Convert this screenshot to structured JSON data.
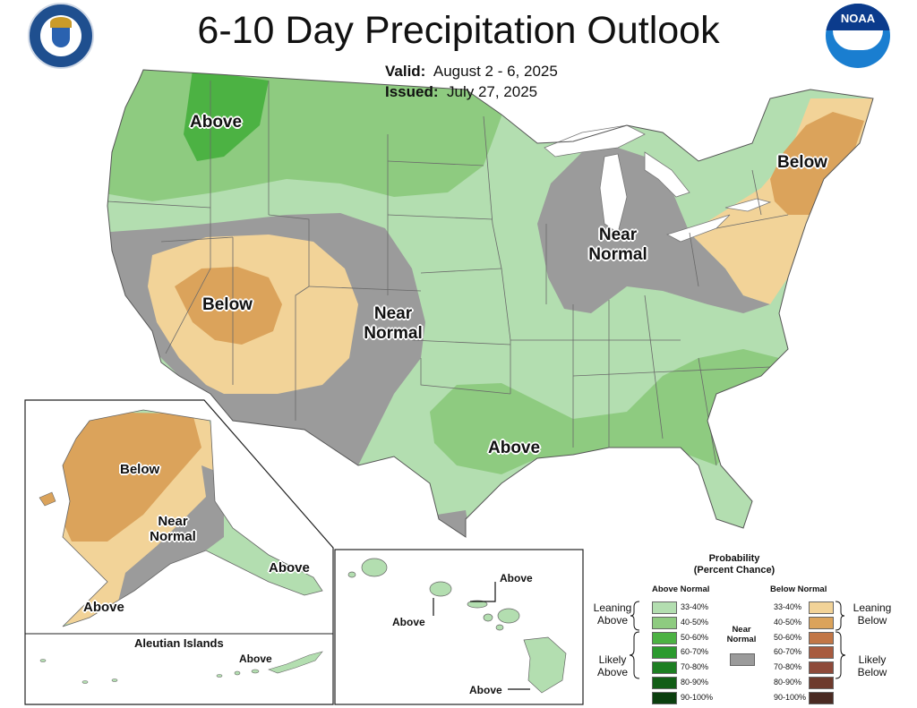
{
  "header": {
    "title": "6-10 Day Precipitation Outlook",
    "valid_label": "Valid:",
    "valid_value": "August 2 - 6, 2025",
    "issued_label": "Issued:",
    "issued_value": "July 27, 2025"
  },
  "logos": {
    "left": "department-of-commerce-seal",
    "right_text": "NOAA"
  },
  "map_labels": {
    "above_northwest": "Above",
    "below_southwest": "Below",
    "near_normal_rockies": "Near Normal",
    "near_normal_great_lakes": "Near Normal",
    "below_northeast": "Below",
    "above_gulf": "Above"
  },
  "alaska": {
    "below": "Below",
    "near_normal": "Near Normal",
    "above_southeast": "Above",
    "above_southwest": "Above",
    "aleutian_title": "Aleutian Islands",
    "aleutian_above": "Above"
  },
  "hawaii": {
    "above_kauai": "Above",
    "above_oahu": "Above",
    "above_bigisland": "Above"
  },
  "legend": {
    "title_line1": "Probability",
    "title_line2": "(Percent Chance)",
    "above_header": "Above Normal",
    "below_header": "Below Normal",
    "near_header_1": "Near",
    "near_header_2": "Normal",
    "leaning_above_1": "Leaning",
    "leaning_above_2": "Above",
    "likely_above_1": "Likely",
    "likely_above_2": "Above",
    "leaning_below_1": "Leaning",
    "leaning_below_2": "Below",
    "likely_below_1": "Likely",
    "likely_below_2": "Below",
    "above_bins": [
      {
        "label": "33-40%",
        "color": "#b3deb0"
      },
      {
        "label": "40-50%",
        "color": "#8ecb80"
      },
      {
        "label": "50-60%",
        "color": "#4cb243"
      },
      {
        "label": "60-70%",
        "color": "#2b9a2e"
      },
      {
        "label": "70-80%",
        "color": "#1d7f22"
      },
      {
        "label": "80-90%",
        "color": "#125e16"
      },
      {
        "label": "90-100%",
        "color": "#0b3f0e"
      }
    ],
    "below_bins": [
      {
        "label": "33-40%",
        "color": "#f2d398"
      },
      {
        "label": "40-50%",
        "color": "#dba35b"
      },
      {
        "label": "50-60%",
        "color": "#c27646"
      },
      {
        "label": "60-70%",
        "color": "#a85b3f"
      },
      {
        "label": "70-80%",
        "color": "#8e4a3a"
      },
      {
        "label": "80-90%",
        "color": "#6e3a2c"
      },
      {
        "label": "90-100%",
        "color": "#4a2a22"
      }
    ],
    "near_color": "#9b9b9b"
  },
  "colors": {
    "water": "#ffffff",
    "state_lines": "#6a6a6a"
  }
}
